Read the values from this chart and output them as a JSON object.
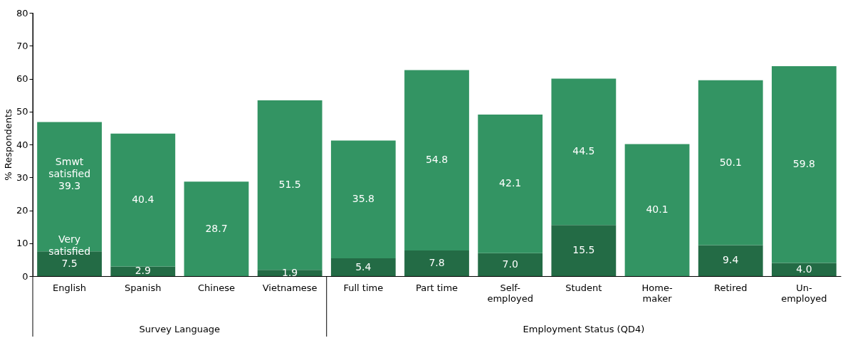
{
  "chart_data": {
    "type": "bar",
    "stacked": true,
    "ylabel": "% Respondents",
    "categories": [
      "English",
      "Spanish",
      "Chinese",
      "Vietnamese",
      "Full time",
      "Part time",
      "Self-employed",
      "Student",
      "Home-maker",
      "Retired",
      "Un-employed"
    ],
    "series": [
      {
        "name": "Very satisfied",
        "color": "#236b45",
        "values": [
          7.5,
          2.9,
          null,
          1.9,
          5.4,
          7.8,
          7.0,
          15.5,
          null,
          9.4,
          4.0
        ],
        "value_labels": [
          "7.5",
          "2.9",
          null,
          "1.9",
          "5.4",
          "7.8",
          "7.0",
          "15.5",
          null,
          "9.4",
          "4.0"
        ]
      },
      {
        "name": "Smwt satisfied",
        "color": "#339463",
        "values": [
          39.3,
          40.4,
          28.7,
          51.5,
          35.8,
          54.8,
          42.1,
          44.5,
          40.1,
          50.1,
          59.8
        ],
        "value_labels": [
          "39.3",
          "40.4",
          "28.7",
          "51.5",
          "35.8",
          "54.8",
          "42.1",
          "44.5",
          "40.1",
          "50.1",
          "59.8"
        ]
      }
    ],
    "ylim": [
      0,
      80
    ],
    "yticks": [
      0,
      10,
      20,
      30,
      40,
      50,
      60,
      70,
      80
    ],
    "legend": false,
    "annotations": [
      "Survey Language",
      "Employment Status (QD4)"
    ]
  }
}
